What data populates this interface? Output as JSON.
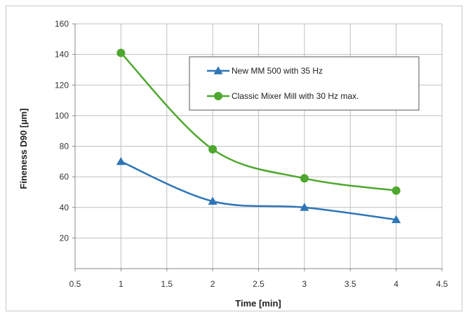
{
  "chart_data": {
    "type": "line",
    "title": "",
    "xlabel": "Time [min]",
    "ylabel": "Fineness D90 [µm]",
    "xlim": [
      0.5,
      4.5
    ],
    "ylim": [
      0,
      160
    ],
    "x_ticks": [
      "0.5",
      "1",
      "1.5",
      "2",
      "2.5",
      "3",
      "3.5",
      "4",
      "4.5"
    ],
    "y_ticks": [
      "20",
      "40",
      "60",
      "80",
      "100",
      "120",
      "140",
      "160"
    ],
    "grid": true,
    "legend_position": "top-right",
    "series": [
      {
        "name": "New MM 500 with 35 Hz",
        "color": "#2e75b6",
        "marker": "triangle",
        "x": [
          1,
          2,
          3,
          4
        ],
        "y": [
          70,
          44,
          40,
          32
        ]
      },
      {
        "name": "Classic Mixer Mill with 30 Hz max.",
        "color": "#4ea72e",
        "marker": "circle",
        "x": [
          1,
          2,
          3,
          4
        ],
        "y": [
          141,
          78,
          59,
          51
        ]
      }
    ]
  }
}
